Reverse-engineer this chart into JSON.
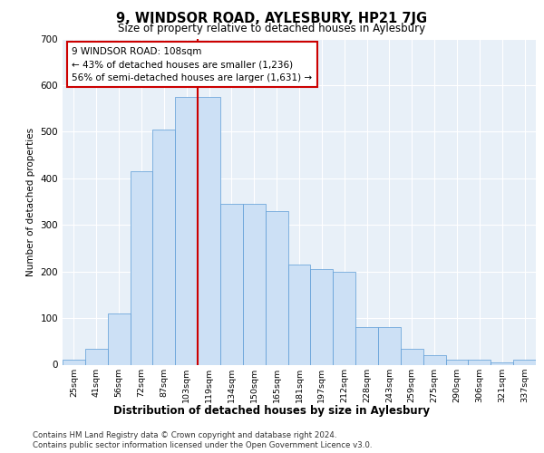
{
  "title": "9, WINDSOR ROAD, AYLESBURY, HP21 7JG",
  "subtitle": "Size of property relative to detached houses in Aylesbury",
  "xlabel": "Distribution of detached houses by size in Aylesbury",
  "ylabel": "Number of detached properties",
  "bar_labels": [
    "25sqm",
    "41sqm",
    "56sqm",
    "72sqm",
    "87sqm",
    "103sqm",
    "119sqm",
    "134sqm",
    "150sqm",
    "165sqm",
    "181sqm",
    "197sqm",
    "212sqm",
    "228sqm",
    "243sqm",
    "259sqm",
    "275sqm",
    "290sqm",
    "306sqm",
    "321sqm",
    "337sqm"
  ],
  "bar_values": [
    10,
    35,
    110,
    415,
    505,
    575,
    575,
    345,
    345,
    330,
    215,
    205,
    200,
    80,
    80,
    35,
    20,
    10,
    10,
    5,
    10
  ],
  "bar_color": "#cce0f5",
  "bar_edge_color": "#5b9bd5",
  "vline_index": 6,
  "vline_color": "#cc0000",
  "annotation_text": "9 WINDSOR ROAD: 108sqm\n← 43% of detached houses are smaller (1,236)\n56% of semi-detached houses are larger (1,631) →",
  "annotation_box_color": "#ffffff",
  "annotation_box_edge": "#cc0000",
  "ylim": [
    0,
    700
  ],
  "yticks": [
    0,
    100,
    200,
    300,
    400,
    500,
    600,
    700
  ],
  "background_color": "#e8f0f8",
  "footer_line1": "Contains HM Land Registry data © Crown copyright and database right 2024.",
  "footer_line2": "Contains public sector information licensed under the Open Government Licence v3.0."
}
